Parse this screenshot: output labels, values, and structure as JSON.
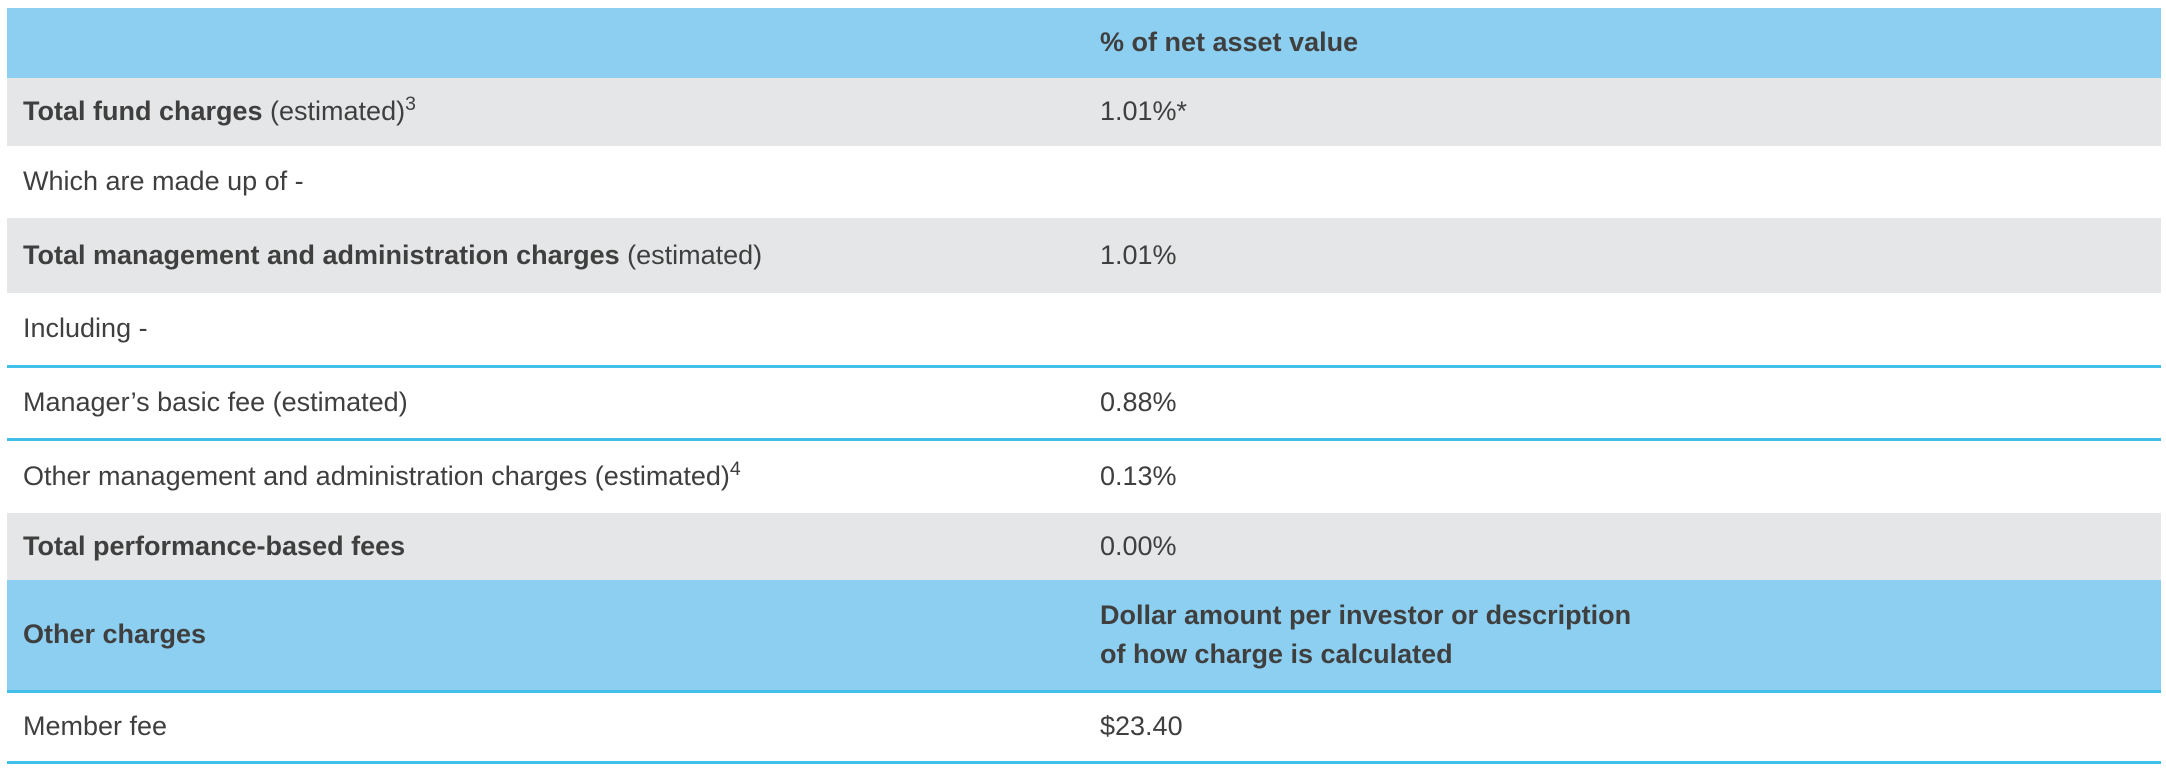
{
  "colors": {
    "header_blue": "#8DCFF0",
    "divider_cyan": "#40BFE8",
    "row_gray": "#E5E6E7",
    "text": "#3F3F3F"
  },
  "table": {
    "description": "fund charges table",
    "rows": [
      {
        "name": "header-net-asset-value",
        "style": "header",
        "cells": [
          {
            "segments": []
          },
          {
            "segments": [
              {
                "text": "% of net asset value",
                "bold": true
              }
            ]
          }
        ]
      },
      {
        "name": "total-fund-charges",
        "style": "shaded",
        "cells": [
          {
            "segments": [
              {
                "text": "Total fund charges",
                "bold": true
              },
              {
                "text": " (estimated)"
              },
              {
                "text": "3",
                "sup": true
              }
            ]
          },
          {
            "segments": [
              {
                "text": "1.01%*"
              }
            ]
          }
        ]
      },
      {
        "name": "which-are-made-up-of",
        "style": "plain",
        "cells": [
          {
            "segments": [
              {
                "text": "Which are made up of -"
              }
            ]
          },
          {
            "segments": []
          }
        ]
      },
      {
        "name": "total-management-admin-charges",
        "style": "shaded",
        "cells": [
          {
            "segments": [
              {
                "text": "Total management and administration charges",
                "bold": true
              },
              {
                "text": " (estimated)"
              }
            ]
          },
          {
            "segments": [
              {
                "text": "1.01%"
              }
            ]
          }
        ]
      },
      {
        "name": "including",
        "style": "plain",
        "cells": [
          {
            "segments": [
              {
                "text": "Including -"
              }
            ]
          },
          {
            "segments": []
          }
        ]
      },
      {
        "name": "managers-basic-fee",
        "style": "plain",
        "border_top": true,
        "cells": [
          {
            "segments": [
              {
                "text": "Manager’s basic fee (estimated)"
              }
            ]
          },
          {
            "segments": [
              {
                "text": "0.88%"
              }
            ]
          }
        ]
      },
      {
        "name": "other-management-admin-charges",
        "style": "plain",
        "border_top": true,
        "cells": [
          {
            "segments": [
              {
                "text": "Other management and administration charges (estimated)"
              },
              {
                "text": "4",
                "sup": true
              }
            ]
          },
          {
            "segments": [
              {
                "text": "0.13%"
              }
            ]
          }
        ]
      },
      {
        "name": "total-performance-based-fees",
        "style": "shaded",
        "cells": [
          {
            "segments": [
              {
                "text": "Total performance-based fees",
                "bold": true
              }
            ]
          },
          {
            "segments": [
              {
                "text": "0.00%"
              }
            ]
          }
        ]
      },
      {
        "name": "header-other-charges",
        "style": "header",
        "border_bottom": true,
        "cells": [
          {
            "segments": [
              {
                "text": "Other charges",
                "bold": true
              }
            ]
          },
          {
            "segments": [
              {
                "text": "Dollar amount per investor or description\nof how charge is calculated",
                "bold": true
              }
            ]
          }
        ]
      },
      {
        "name": "member-fee",
        "style": "plain",
        "border_bottom": true,
        "cells": [
          {
            "segments": [
              {
                "text": "Member fee"
              }
            ]
          },
          {
            "segments": [
              {
                "text": "$23.40"
              }
            ]
          }
        ]
      }
    ]
  }
}
